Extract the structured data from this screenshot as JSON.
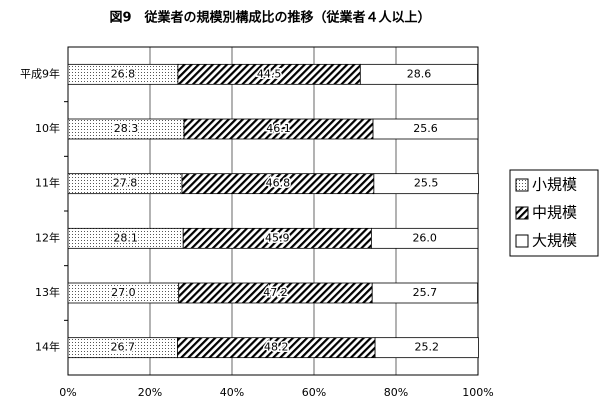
{
  "chart_data": {
    "type": "stacked_bar_horizontal",
    "title": "図9　従業者の規模別構成比の推移（従業者４人以上）",
    "categories": [
      "平成9年",
      "10年",
      "11年",
      "12年",
      "13年",
      "14年"
    ],
    "series": [
      {
        "name": "小規模",
        "pattern": "dots",
        "values": [
          26.8,
          28.3,
          27.8,
          28.1,
          27.0,
          26.7
        ],
        "value_labels": [
          "26.8",
          "28.3",
          "27.8",
          "28.1",
          "27.0",
          "26.7"
        ]
      },
      {
        "name": "中規模",
        "pattern": "hatch",
        "values": [
          44.5,
          46.1,
          46.8,
          45.9,
          47.2,
          48.2
        ]
      },
      {
        "name": "大規模",
        "pattern": "none",
        "values": [
          28.6,
          25.6,
          25.5,
          26.0,
          25.7,
          25.2
        ],
        "value_labels": [
          "28.6",
          "25.6",
          "25.5",
          "26.0",
          "25.7",
          "25.2"
        ]
      }
    ],
    "xlim": [
      0,
      100
    ],
    "xticks": [
      {
        "value": 0,
        "label": "0%"
      },
      {
        "value": 20,
        "label": "20%"
      },
      {
        "value": 40,
        "label": "40%"
      },
      {
        "value": 60,
        "label": "60%"
      },
      {
        "value": 80,
        "label": "80%"
      },
      {
        "value": 100,
        "label": "100%"
      }
    ],
    "grid": true,
    "legend": "right"
  }
}
